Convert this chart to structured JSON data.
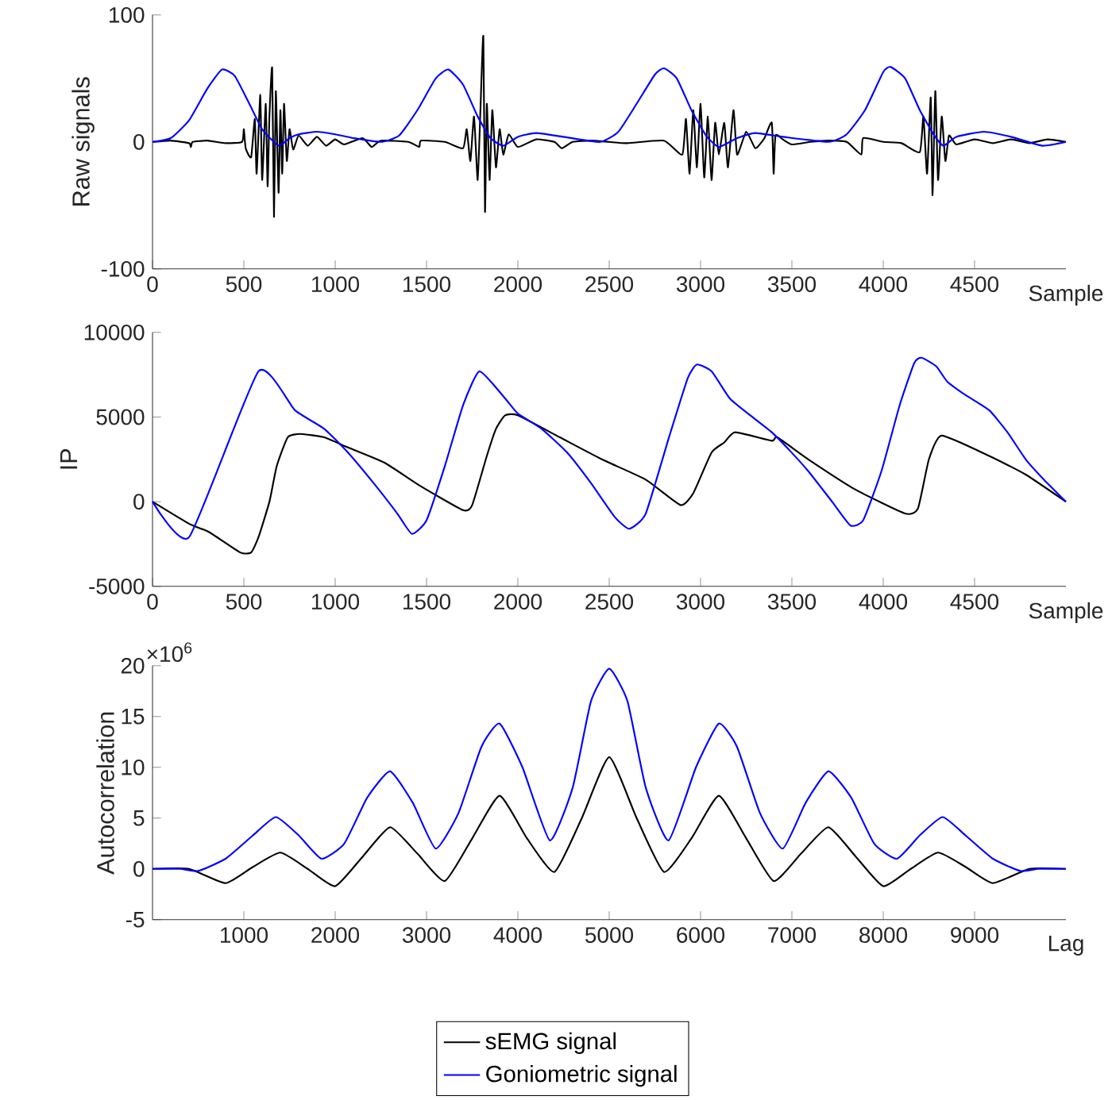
{
  "chart_data": [
    {
      "type": "line",
      "ylabel": "Raw signals",
      "xlabel": "Sample",
      "xlim": [
        0,
        5000
      ],
      "ylim": [
        -100,
        100
      ],
      "xticks": [
        0,
        500,
        1000,
        1500,
        2000,
        2500,
        3000,
        3500,
        4000,
        4500
      ],
      "yticks": [
        -100,
        0,
        100
      ],
      "legend": false,
      "series": [
        {
          "color": "#000000",
          "x": [
            0,
            100,
            200,
            210,
            220,
            300,
            400,
            490,
            500,
            510,
            540,
            560,
            570,
            590,
            600,
            620,
            630,
            640,
            655,
            665,
            675,
            690,
            700,
            710,
            720,
            735,
            750,
            770,
            800,
            850,
            900,
            950,
            1000,
            1050,
            1150,
            1200,
            1250,
            1400,
            1460,
            1470,
            1600,
            1700,
            1720,
            1740,
            1760,
            1780,
            1795,
            1811,
            1820,
            1830,
            1845,
            1860,
            1880,
            1900,
            1920,
            1950,
            2000,
            2100,
            2200,
            2240,
            2300,
            2400,
            2500,
            2600,
            2800,
            2900,
            2920,
            2940,
            2960,
            2980,
            3000,
            3020,
            3040,
            3060,
            3080,
            3100,
            3130,
            3150,
            3180,
            3200,
            3250,
            3300,
            3350,
            3390,
            3400,
            3410,
            3450,
            3500,
            3600,
            3700,
            3800,
            3880,
            3890,
            4000,
            4100,
            4200,
            4220,
            4240,
            4260,
            4270,
            4285,
            4300,
            4320,
            4340,
            4360,
            4400,
            4500,
            4600,
            4700,
            4800,
            4900,
            5000
          ],
          "values": [
            0,
            1,
            -1,
            -4,
            0,
            1,
            -1,
            0,
            10,
            -5,
            -12,
            18,
            -25,
            37,
            -30,
            30,
            -35,
            20,
            58,
            -59,
            40,
            -40,
            25,
            -25,
            30,
            -15,
            10,
            -6,
            5,
            -3,
            4,
            -3,
            2,
            -2,
            3,
            -4,
            1,
            0,
            -4,
            1,
            0,
            -5,
            10,
            -15,
            20,
            -30,
            25,
            83,
            -55,
            30,
            -30,
            25,
            -20,
            10,
            -10,
            6,
            -4,
            2,
            0,
            -5,
            0,
            1,
            0,
            -1,
            1,
            -10,
            18,
            -25,
            25,
            -20,
            30,
            -28,
            20,
            -30,
            15,
            -10,
            15,
            -20,
            25,
            -10,
            8,
            -5,
            3,
            15,
            -25,
            5,
            2,
            -2,
            0,
            1,
            0,
            -10,
            3,
            0,
            -1,
            -8,
            20,
            -25,
            35,
            -42,
            40,
            -30,
            20,
            -15,
            5,
            -2,
            2,
            -1,
            2,
            -1,
            2,
            0
          ]
        },
        {
          "color": "#0000ff",
          "x": [
            0,
            100,
            200,
            300,
            380,
            450,
            530,
            600,
            690,
            750,
            800,
            900,
            1000,
            1100,
            1250,
            1350,
            1450,
            1550,
            1620,
            1700,
            1780,
            1850,
            1920,
            2000,
            2100,
            2250,
            2450,
            2550,
            2650,
            2750,
            2800,
            2870,
            2950,
            3030,
            3100,
            3200,
            3300,
            3450,
            3700,
            3800,
            3900,
            4000,
            4040,
            4120,
            4200,
            4280,
            4330,
            4400,
            4550,
            4700,
            4870,
            5000
          ],
          "values": [
            0,
            3,
            17,
            42,
            57,
            52,
            30,
            10,
            -3,
            3,
            6,
            8,
            6,
            3,
            0,
            5,
            25,
            50,
            57,
            45,
            20,
            3,
            -3,
            4,
            7,
            4,
            0,
            8,
            30,
            53,
            58,
            50,
            25,
            5,
            -4,
            3,
            7,
            4,
            0,
            6,
            25,
            55,
            59,
            50,
            25,
            5,
            -3,
            4,
            8,
            4,
            -3,
            0
          ]
        }
      ]
    },
    {
      "type": "line",
      "ylabel": "IP",
      "xlabel": "Sample",
      "xlim": [
        0,
        5000
      ],
      "ylim": [
        -5000,
        10000
      ],
      "xticks": [
        0,
        500,
        1000,
        1500,
        2000,
        2500,
        3000,
        3500,
        4000,
        4500
      ],
      "yticks": [
        -5000,
        0,
        5000,
        10000
      ],
      "legend": false,
      "series": [
        {
          "color": "#000000",
          "x": [
            0,
            200,
            310,
            480,
            540,
            580,
            640,
            680,
            740,
            810,
            940,
            1070,
            1270,
            1470,
            1700,
            1750,
            1830,
            1880,
            1930,
            2000,
            2230,
            2460,
            2700,
            2890,
            2960,
            3060,
            3130,
            3190,
            3390,
            3420,
            3590,
            3850,
            4120,
            4190,
            4250,
            4320,
            4580,
            4780,
            5000
          ],
          "values": [
            0,
            -1300,
            -1800,
            -3000,
            -3000,
            -2100,
            0,
            2100,
            3800,
            4000,
            3800,
            3200,
            2300,
            900,
            -500,
            -200,
            2700,
            4300,
            5100,
            5100,
            3800,
            2500,
            1300,
            -200,
            500,
            2900,
            3500,
            4100,
            3600,
            3800,
            2500,
            700,
            -700,
            -400,
            2500,
            3900,
            2700,
            1600,
            0
          ]
        },
        {
          "color": "#0000ff",
          "x": [
            0,
            200,
            580,
            780,
            940,
            1070,
            1210,
            1340,
            1420,
            1500,
            1600,
            1700,
            1790,
            1930,
            2000,
            2130,
            2270,
            2400,
            2530,
            2610,
            2700,
            2830,
            2930,
            2980,
            3060,
            3160,
            3260,
            3390,
            3490,
            3590,
            3720,
            3820,
            3890,
            3990,
            4090,
            4170,
            4210,
            4290,
            4350,
            4450,
            4580,
            4680,
            4780,
            4880,
            5000
          ],
          "values": [
            0,
            -2100,
            7700,
            5400,
            4300,
            2900,
            1100,
            -700,
            -1900,
            -1100,
            2100,
            5700,
            7700,
            6100,
            5200,
            4300,
            2900,
            1100,
            -900,
            -1600,
            -700,
            3900,
            7300,
            8100,
            7700,
            6100,
            5200,
            4100,
            3000,
            1800,
            0,
            -1400,
            -1100,
            1800,
            5700,
            8200,
            8500,
            8000,
            7100,
            6300,
            5400,
            4100,
            2500,
            1300,
            0
          ]
        }
      ]
    },
    {
      "type": "line",
      "ylabel": "Autocorrelation",
      "xlabel": "Lag",
      "xlim": [
        0,
        10000
      ],
      "ylim": [
        -5,
        20
      ],
      "xticks": [
        1000,
        2000,
        3000,
        4000,
        5000,
        6000,
        7000,
        8000,
        9000
      ],
      "yticks": [
        -5,
        0,
        5,
        10,
        15,
        20
      ],
      "legend": "bottom",
      "annotations": [
        "×10$^{6}$"
      ],
      "series": [
        {
          "name": "sEMG signal",
          "color": "#000000",
          "x": [
            0,
            400,
            800,
            1100,
            1400,
            1700,
            2000,
            2300,
            2600,
            2900,
            3200,
            3500,
            3800,
            4100,
            4400,
            4700,
            5000,
            5300,
            5600,
            5900,
            6200,
            6500,
            6800,
            7100,
            7400,
            7700,
            8000,
            8300,
            8600,
            8900,
            9200,
            9600,
            10000
          ],
          "values": [
            0,
            0,
            -1.4,
            0.2,
            1.6,
            0,
            -1.7,
            1.2,
            4.1,
            1.5,
            -1.2,
            3,
            7.2,
            3,
            -0.3,
            5,
            11,
            5,
            -0.3,
            3,
            7.2,
            3,
            -1.2,
            1.5,
            4.1,
            1.2,
            -1.7,
            0,
            1.6,
            0.2,
            -1.4,
            0,
            0
          ]
        },
        {
          "name": "Goniometric signal",
          "color": "#0000ff",
          "x": [
            0,
            300,
            500,
            800,
            1100,
            1350,
            1600,
            1850,
            2100,
            2350,
            2600,
            2850,
            3100,
            3350,
            3600,
            3800,
            4050,
            4350,
            4600,
            4800,
            5000,
            5200,
            5400,
            5650,
            5950,
            6200,
            6400,
            6650,
            6900,
            7150,
            7400,
            7650,
            7900,
            8150,
            8400,
            8650,
            8900,
            9200,
            9500,
            9700,
            10000
          ],
          "values": [
            0,
            0,
            -0.2,
            1,
            3.3,
            5.1,
            3.3,
            1,
            2.5,
            7,
            9.6,
            6.5,
            2,
            5.5,
            12,
            14.3,
            10,
            2.8,
            8,
            16.5,
            19.7,
            16.5,
            8,
            2.8,
            10,
            14.3,
            12,
            5.5,
            2,
            6.5,
            9.6,
            7,
            2.5,
            1,
            3.3,
            5.1,
            3.3,
            1,
            -0.2,
            0,
            0
          ]
        }
      ]
    }
  ]
}
